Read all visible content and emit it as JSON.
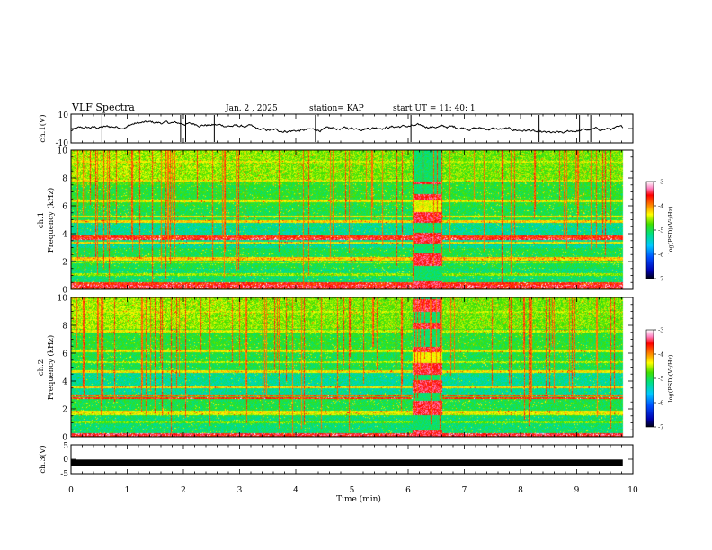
{
  "header": {
    "title": "VLF Spectra",
    "date": "Jan. 2 , 2025",
    "station": "station= KAP",
    "start": "start UT = 11: 40: 1"
  },
  "chart_data": [
    {
      "type": "line",
      "name": "ch1-waveform",
      "ylabel": "ch.1(V)",
      "ylim": [
        -10,
        10
      ],
      "ytick_labels": [
        "10",
        "-10"
      ],
      "xlim": [
        0,
        10
      ]
    },
    {
      "type": "heatmap",
      "name": "ch1-spectrogram",
      "ylabel_lines": [
        "ch.1",
        "Frequency (kHz)"
      ],
      "ylim": [
        0,
        10
      ],
      "yticks": [
        0,
        2,
        4,
        6,
        8,
        10
      ],
      "ytick_labels": [
        "0",
        "2",
        "4",
        "6",
        "8",
        "10"
      ],
      "colorbar": {
        "label": "log(PSD)(V²/Hz)",
        "range": [
          -7,
          -3
        ],
        "ticks": [
          -3,
          -4,
          -5,
          -6,
          -7
        ],
        "tick_labels": [
          "-3",
          "-4",
          "-5",
          "-6",
          "-7"
        ]
      },
      "events": [
        {
          "x_start": 6.08,
          "x_end": 6.6,
          "note": "broadband emission"
        }
      ]
    },
    {
      "type": "heatmap",
      "name": "ch2-spectrogram",
      "ylabel_lines": [
        "ch.2",
        "Frequency (kHz)"
      ],
      "ylim": [
        0,
        10
      ],
      "yticks": [
        0,
        2,
        4,
        6,
        8,
        10
      ],
      "ytick_labels": [
        "0",
        "2",
        "4",
        "6",
        "8",
        "10"
      ],
      "colorbar": {
        "label": "log(PSD)(V²/Hz)",
        "range": [
          -7,
          -3
        ],
        "ticks": [
          -3,
          -4,
          -5,
          -6,
          -7
        ],
        "tick_labels": [
          "-3",
          "-4",
          "-5",
          "-6",
          "-7"
        ]
      },
      "events": [
        {
          "x_start": 6.08,
          "x_end": 6.6,
          "note": "broadband emission"
        }
      ]
    },
    {
      "type": "line",
      "name": "ch3-waveform",
      "ylabel": "ch.3(V)",
      "ylim": [
        -5,
        5
      ],
      "yticks": [
        5,
        0,
        -5
      ],
      "ytick_labels": [
        "5",
        "0",
        "-5"
      ],
      "constant_value": -1.2,
      "xlim": [
        0,
        10
      ]
    }
  ],
  "xaxis": {
    "label": "Time (min)",
    "range": [
      0,
      10
    ],
    "ticks": [
      0,
      1,
      2,
      3,
      4,
      5,
      6,
      7,
      8,
      9,
      10
    ],
    "tick_labels": [
      "0",
      "1",
      "2",
      "3",
      "4",
      "5",
      "6",
      "7",
      "8",
      "9",
      "10"
    ]
  }
}
